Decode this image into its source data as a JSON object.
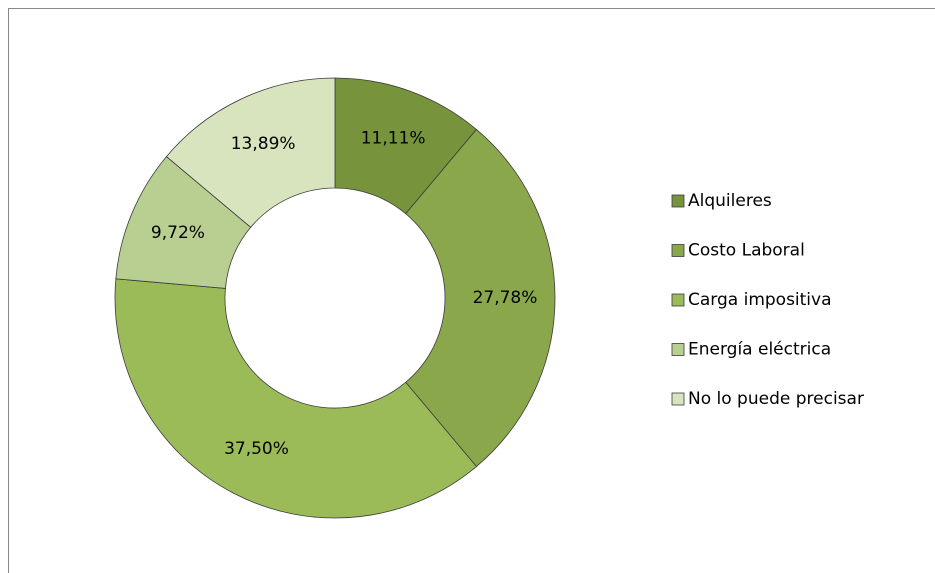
{
  "chart_data": {
    "type": "donut",
    "categories": [
      "Alquileres",
      "Costo Laboral",
      "Carga impositiva",
      "Energía eléctrica",
      "No lo puede precisar"
    ],
    "values": [
      11.11,
      27.78,
      37.5,
      9.72,
      13.89
    ],
    "value_labels": [
      "11,11%",
      "27,78%",
      "37,50%",
      "9,72%",
      "13,89%"
    ],
    "colors": [
      "#77933c",
      "#8aa84b",
      "#9bbb59",
      "#b9cf91",
      "#d7e4bd"
    ],
    "legend": "right"
  }
}
